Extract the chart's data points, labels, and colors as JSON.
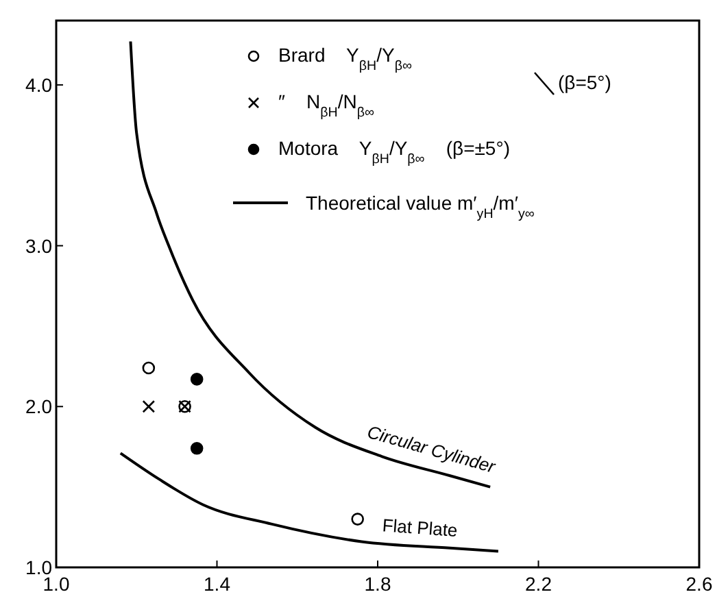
{
  "chart_data": {
    "type": "scatter",
    "xlim": [
      1.0,
      2.6
    ],
    "ylim": [
      1.0,
      4.4
    ],
    "xticks": [
      {
        "value": 1.0,
        "label": "1.0"
      },
      {
        "value": 1.4,
        "label": "1.4"
      },
      {
        "value": 1.8,
        "label": "1.8"
      },
      {
        "value": 2.2,
        "label": "2.2"
      },
      {
        "value": 2.6,
        "label": "2.6"
      }
    ],
    "yticks": [
      {
        "value": 1.0,
        "label": "1.0"
      },
      {
        "value": 2.0,
        "label": "2.0"
      },
      {
        "value": 3.0,
        "label": "3.0"
      },
      {
        "value": 4.0,
        "label": "4.0"
      }
    ],
    "grid": false,
    "legend": "top",
    "series": [
      {
        "name": "Brard    Y$_{βH}$/Y$_{β∞}$",
        "marker": "circle",
        "color": "#ffffff",
        "x": [
          1.23,
          1.32,
          1.75
        ],
        "values": [
          2.24,
          2.0,
          1.3
        ]
      },
      {
        "name": "″    N$_{βH}$/N$_{β∞}$",
        "marker": "cross",
        "color": "#000000",
        "x": [
          1.23,
          1.32
        ],
        "values": [
          2.0,
          2.0
        ]
      },
      {
        "name": "Motora    Y$_{βH}$/Y$_{β∞}$    (β=±5°)",
        "marker": "circle",
        "color": "#000000",
        "x": [
          1.35,
          1.35
        ],
        "values": [
          2.17,
          1.74
        ]
      },
      {
        "name": "Circular Cylinder",
        "type": "line",
        "marker": "none",
        "line_style": "solid",
        "color": "#000000",
        "x": [
          1.185,
          1.2,
          1.25,
          1.28,
          1.34,
          1.48,
          1.645,
          1.81,
          1.98,
          2.08
        ],
        "values": [
          4.27,
          3.7,
          3.2,
          3.0,
          2.66,
          2.21,
          1.87,
          1.69,
          1.57,
          1.5
        ]
      },
      {
        "name": "Flat Plate",
        "type": "line",
        "marker": "none",
        "line_style": "solid",
        "color": "#000000",
        "x": [
          1.16,
          1.255,
          1.365,
          1.535,
          1.76,
          1.98,
          2.1
        ],
        "values": [
          1.71,
          1.55,
          1.39,
          1.27,
          1.16,
          1.12,
          1.1
        ]
      }
    ],
    "annotations": [
      "(β=5°)",
      "Theoretical value m′$_{yH}$/m′$_{y∞}$"
    ]
  }
}
